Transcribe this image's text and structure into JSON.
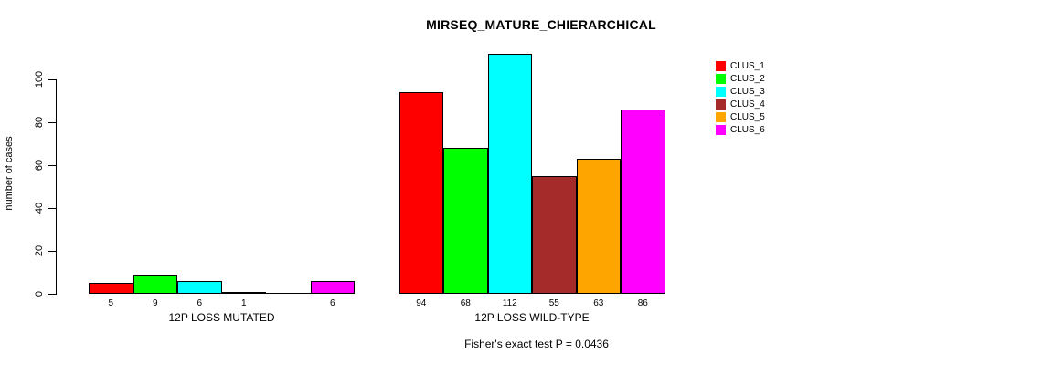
{
  "chart_data": {
    "type": "bar",
    "title": "MIRSEQ_MATURE_CHIERARCHICAL",
    "ylabel": "number of cases",
    "xlabel": "",
    "footnote": "Fisher's exact test P = 0.0436",
    "ylim": [
      0,
      112
    ],
    "yticks": [
      0,
      20,
      40,
      60,
      80,
      100
    ],
    "grid": false,
    "legend_position": "top-right",
    "categories": [
      "12P LOSS MUTATED",
      "12P LOSS WILD-TYPE"
    ],
    "series": [
      {
        "name": "CLUS_1",
        "color": "#ff0000",
        "values": [
          5,
          94
        ],
        "bar_labels": [
          "5",
          "94"
        ]
      },
      {
        "name": "CLUS_2",
        "color": "#00ff00",
        "values": [
          9,
          68
        ],
        "bar_labels": [
          "9",
          "68"
        ]
      },
      {
        "name": "CLUS_3",
        "color": "#00ffff",
        "values": [
          6,
          112
        ],
        "bar_labels": [
          "6",
          "112"
        ]
      },
      {
        "name": "CLUS_4",
        "color": "#a52a2a",
        "values": [
          1,
          55
        ],
        "bar_labels": [
          "1",
          "55"
        ]
      },
      {
        "name": "CLUS_5",
        "color": "#ffa500",
        "values": [
          0,
          63
        ],
        "bar_labels": [
          "",
          "63"
        ]
      },
      {
        "name": "CLUS_6",
        "color": "#ff00ff",
        "values": [
          6,
          86
        ],
        "bar_labels": [
          "6",
          "86"
        ]
      }
    ]
  },
  "colors": {
    "background": "#ffffff",
    "axis": "#000000",
    "text": "#000000",
    "bar_border": "#000000"
  }
}
